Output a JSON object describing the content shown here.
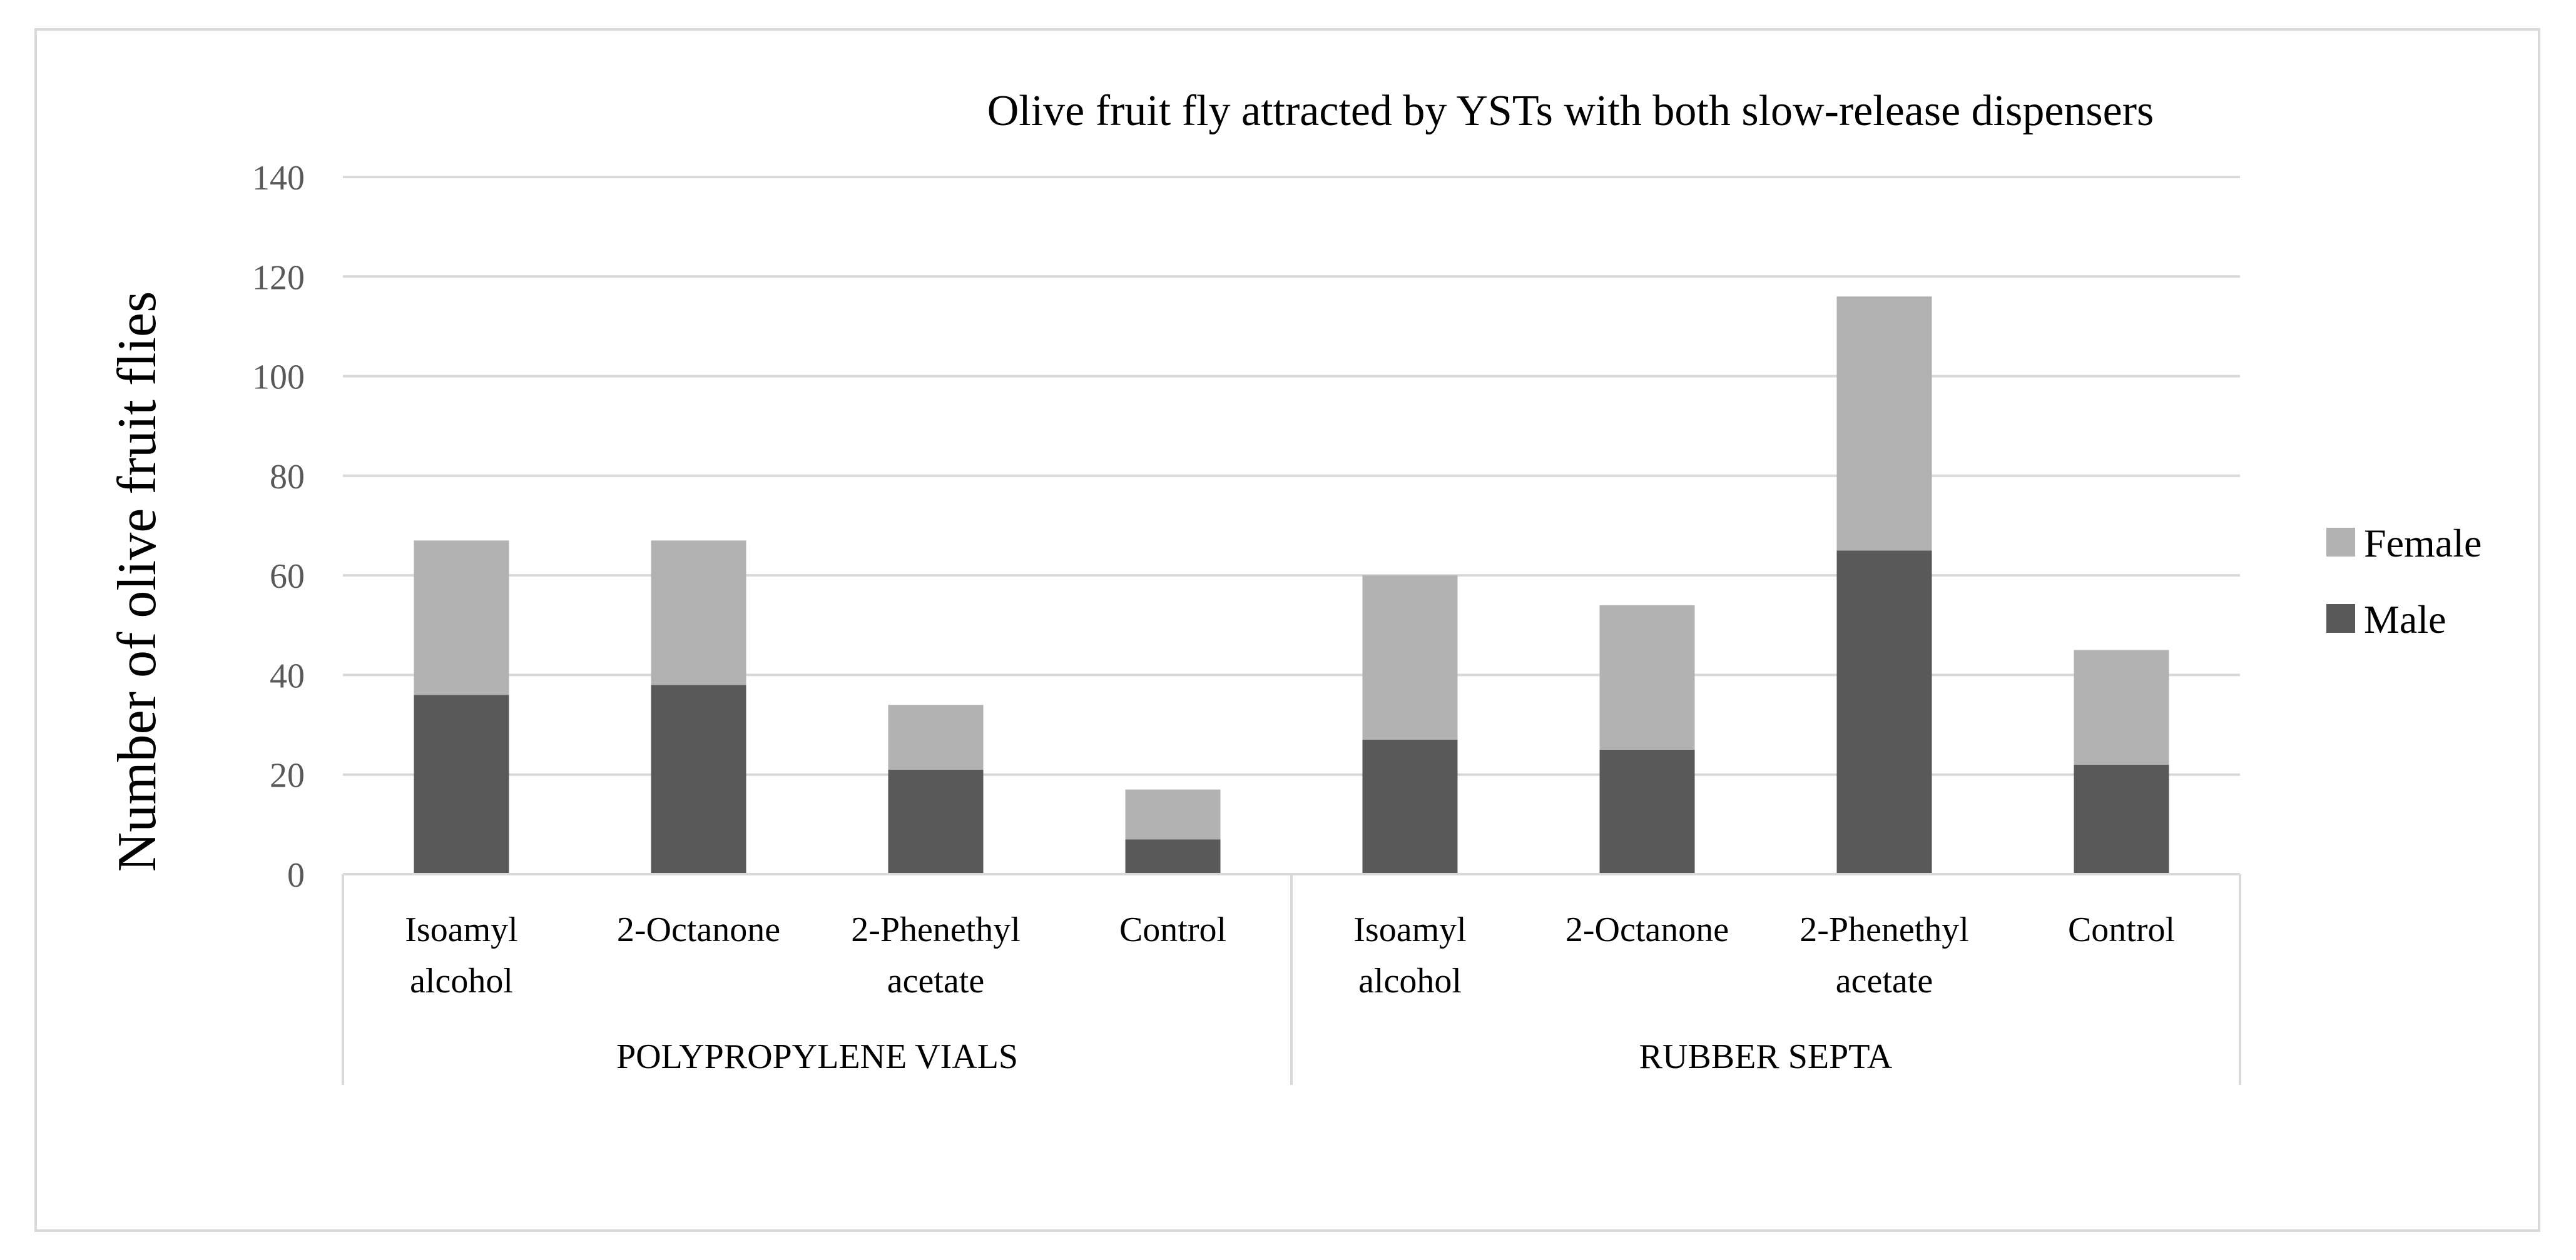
{
  "chart_data": {
    "type": "bar",
    "stacked": true,
    "title": "Olive fruit fly attracted by YSTs with both slow-release dispensers",
    "xlabel": "",
    "ylabel": "Number of olive fruit flies",
    "ylim": [
      0,
      140
    ],
    "yticks": [
      0,
      20,
      40,
      60,
      80,
      100,
      120,
      140
    ],
    "grid": true,
    "legend_position": "right",
    "groups": [
      {
        "label": "POLYPROPYLENE VIALS",
        "categories": [
          {
            "lines": [
              "Isoamyl",
              "alcohol"
            ]
          },
          {
            "lines": [
              "2-Octanone"
            ]
          },
          {
            "lines": [
              "2-Phenethyl",
              "acetate"
            ]
          },
          {
            "lines": [
              "Control"
            ]
          }
        ]
      },
      {
        "label": "RUBBER SEPTA",
        "categories": [
          {
            "lines": [
              "Isoamyl",
              "alcohol"
            ]
          },
          {
            "lines": [
              "2-Octanone"
            ]
          },
          {
            "lines": [
              "2-Phenethyl",
              "acetate"
            ]
          },
          {
            "lines": [
              "Control"
            ]
          }
        ]
      }
    ],
    "series": [
      {
        "name": "Male",
        "color": "#595959",
        "values": [
          36,
          38,
          21,
          7,
          27,
          25,
          65,
          22
        ]
      },
      {
        "name": "Female",
        "color": "#b2b2b2",
        "values": [
          31,
          29,
          13,
          10,
          33,
          29,
          51,
          23
        ]
      }
    ],
    "legend_order": [
      "Female",
      "Male"
    ]
  }
}
